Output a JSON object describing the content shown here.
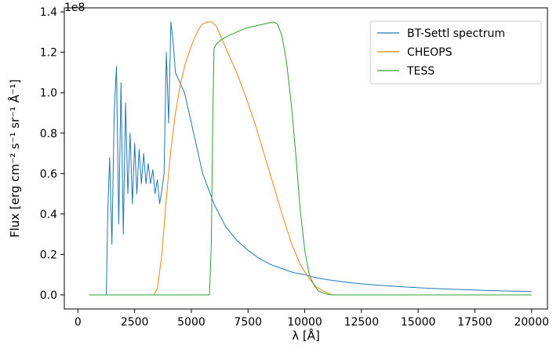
{
  "chart_data": {
    "type": "line",
    "title": "",
    "xlabel": "λ [Å]",
    "ylabel": "Flux [erg cm⁻² s⁻¹ sr⁻¹ Å⁻¹]",
    "y_offset_label": "1e8",
    "xlim": [
      -600,
      20700
    ],
    "ylim": [
      -0.07,
      1.42
    ],
    "x_ticks": [
      0,
      2500,
      5000,
      7500,
      10000,
      12500,
      15000,
      17500,
      20000
    ],
    "x_tick_labels": [
      "0",
      "2500",
      "5000",
      "7500",
      "10000",
      "12500",
      "15000",
      "17500",
      "20000"
    ],
    "y_ticks": [
      0,
      0.2,
      0.4,
      0.6,
      0.8,
      1.0,
      1.2,
      1.4
    ],
    "y_tick_labels": [
      "0.0",
      "0.2",
      "0.4",
      "0.6",
      "0.8",
      "1.0",
      "1.2",
      "1.4"
    ],
    "grid": false,
    "legend_position": "top-right",
    "series": [
      {
        "name": "BT-Settl spectrum",
        "color": "#1f77b4",
        "x": [
          500,
          1250,
          1320,
          1400,
          1500,
          1600,
          1700,
          1800,
          1900,
          2000,
          2100,
          2200,
          2300,
          2400,
          2500,
          2600,
          2700,
          2800,
          2900,
          3000,
          3100,
          3200,
          3300,
          3400,
          3500,
          3600,
          3700,
          3800,
          3900,
          4000,
          4100,
          4200,
          4300,
          4500,
          4700,
          5000,
          5500,
          6000,
          6500,
          7000,
          7500,
          8000,
          8500,
          9000,
          9500,
          10000,
          10500,
          11000,
          12000,
          13000,
          14000,
          15000,
          16000,
          17000,
          18000,
          19000,
          20000
        ],
        "y": [
          0.0,
          0.0,
          0.42,
          0.68,
          0.25,
          0.9,
          1.13,
          0.35,
          1.05,
          0.3,
          0.95,
          0.5,
          0.8,
          0.45,
          0.75,
          0.5,
          0.72,
          0.55,
          0.7,
          0.55,
          0.65,
          0.55,
          0.62,
          0.5,
          0.57,
          0.45,
          0.52,
          0.6,
          1.2,
          0.85,
          1.35,
          1.25,
          1.1,
          1.05,
          1.0,
          0.85,
          0.6,
          0.45,
          0.34,
          0.27,
          0.22,
          0.18,
          0.15,
          0.13,
          0.11,
          0.1,
          0.085,
          0.075,
          0.06,
          0.05,
          0.042,
          0.035,
          0.03,
          0.026,
          0.022,
          0.019,
          0.016
        ]
      },
      {
        "name": "CHEOPS",
        "color": "#ff7f0e",
        "x": [
          500,
          3350,
          3500,
          3700,
          3900,
          4100,
          4300,
          4500,
          4700,
          4900,
          5100,
          5300,
          5500,
          5700,
          5900,
          6100,
          6300,
          6600,
          7000,
          7400,
          7800,
          8200,
          8600,
          9000,
          9400,
          9800,
          10200,
          10500,
          10800,
          11000,
          11200,
          20000
        ],
        "y": [
          0.0,
          0.0,
          0.03,
          0.2,
          0.48,
          0.72,
          0.9,
          1.03,
          1.13,
          1.2,
          1.26,
          1.31,
          1.34,
          1.35,
          1.35,
          1.33,
          1.28,
          1.2,
          1.1,
          0.98,
          0.85,
          0.7,
          0.55,
          0.4,
          0.26,
          0.15,
          0.08,
          0.04,
          0.02,
          0.01,
          0.0,
          0.0
        ]
      },
      {
        "name": "TESS",
        "color": "#2ca02c",
        "x": [
          500,
          5800,
          5880,
          5950,
          6000,
          6100,
          6300,
          6600,
          7000,
          7400,
          7800,
          8200,
          8600,
          8800,
          9000,
          9200,
          9400,
          9600,
          9800,
          10000,
          10200,
          10400,
          10600,
          10800,
          11000,
          11200,
          20000
        ],
        "y": [
          0.0,
          0.0,
          0.25,
          0.9,
          1.22,
          1.24,
          1.26,
          1.28,
          1.3,
          1.32,
          1.33,
          1.34,
          1.35,
          1.34,
          1.28,
          1.15,
          0.95,
          0.7,
          0.42,
          0.22,
          0.1,
          0.05,
          0.02,
          0.01,
          0.003,
          0.0,
          0.0
        ]
      }
    ]
  }
}
